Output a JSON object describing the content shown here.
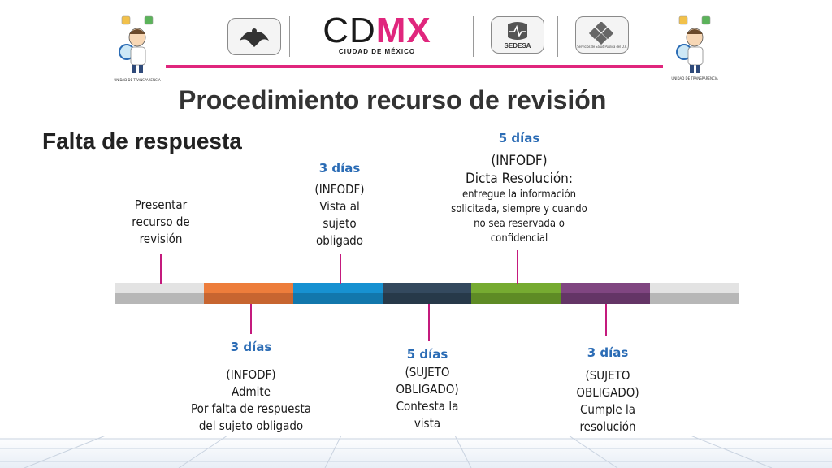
{
  "header": {
    "brand_cd": "CD",
    "brand_mx": "MX",
    "brand_sub": "CIUDAD DE MÉXICO",
    "sedesa": "SEDESA",
    "salud_caption": "Servicios de Salud Pública del D.F.",
    "unidad_left": "UNIDAD DE TRANSPARENCIA",
    "unidad_right": "UNIDAD DE TRANSPARENCIA"
  },
  "title": "Procedimiento recurso de revisión",
  "subtitle": "Falta de respuesta",
  "colors": {
    "accent": "#e0267d",
    "days_blue": "#2b6cb5",
    "tick": "#c41a7d",
    "segments": [
      "#d0d0d0",
      "#ec7c3c",
      "#1490cf",
      "#2d4a5f",
      "#74a831",
      "#7e447e",
      "#d0d0d0"
    ]
  },
  "steps_top": {
    "s1": {
      "lines": [
        "Presentar",
        "recurso de",
        "revisión"
      ]
    },
    "s3": {
      "days": "3 días",
      "lines": [
        "(INFODF)",
        "Vista al",
        "sujeto",
        "obligado"
      ]
    },
    "s5": {
      "days": "5 días",
      "l1": "(INFODF)",
      "l2": "Dicta Resolución:",
      "small": [
        "entregue la información",
        "solicitada, siempre y cuando",
        "no sea reservada o",
        "confidencial"
      ]
    }
  },
  "steps_bottom": {
    "s2": {
      "days": "3 días",
      "lines": [
        "(INFODF)",
        "Admite",
        "Por falta de respuesta",
        "del sujeto obligado"
      ]
    },
    "s4": {
      "days": "5 días",
      "lines": [
        "(SUJETO",
        "OBLIGADO)",
        "Contesta la",
        "vista"
      ]
    },
    "s6": {
      "days": "3 días",
      "lines": [
        "(SUJETO",
        "OBLIGADO)",
        "Cumple la",
        "resolución"
      ]
    }
  }
}
